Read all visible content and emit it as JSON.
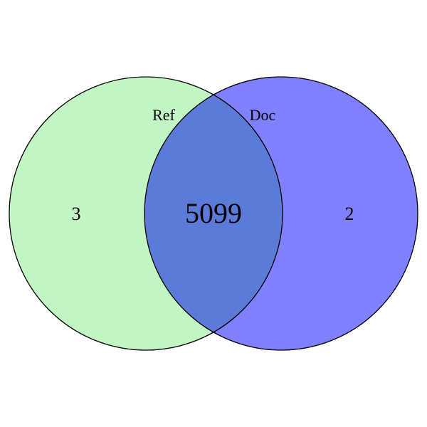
{
  "venn": {
    "sets": [
      {
        "label": "Ref",
        "fill_color": "#c2f5c4",
        "stroke_color": "#000000"
      },
      {
        "label": "Doc",
        "fill_color": "#8080ff",
        "stroke_color": "#000000"
      }
    ],
    "overlap_color": "#5c7ad8",
    "regions": {
      "ref_only": "3",
      "doc_only": "2",
      "both": "5099"
    }
  }
}
